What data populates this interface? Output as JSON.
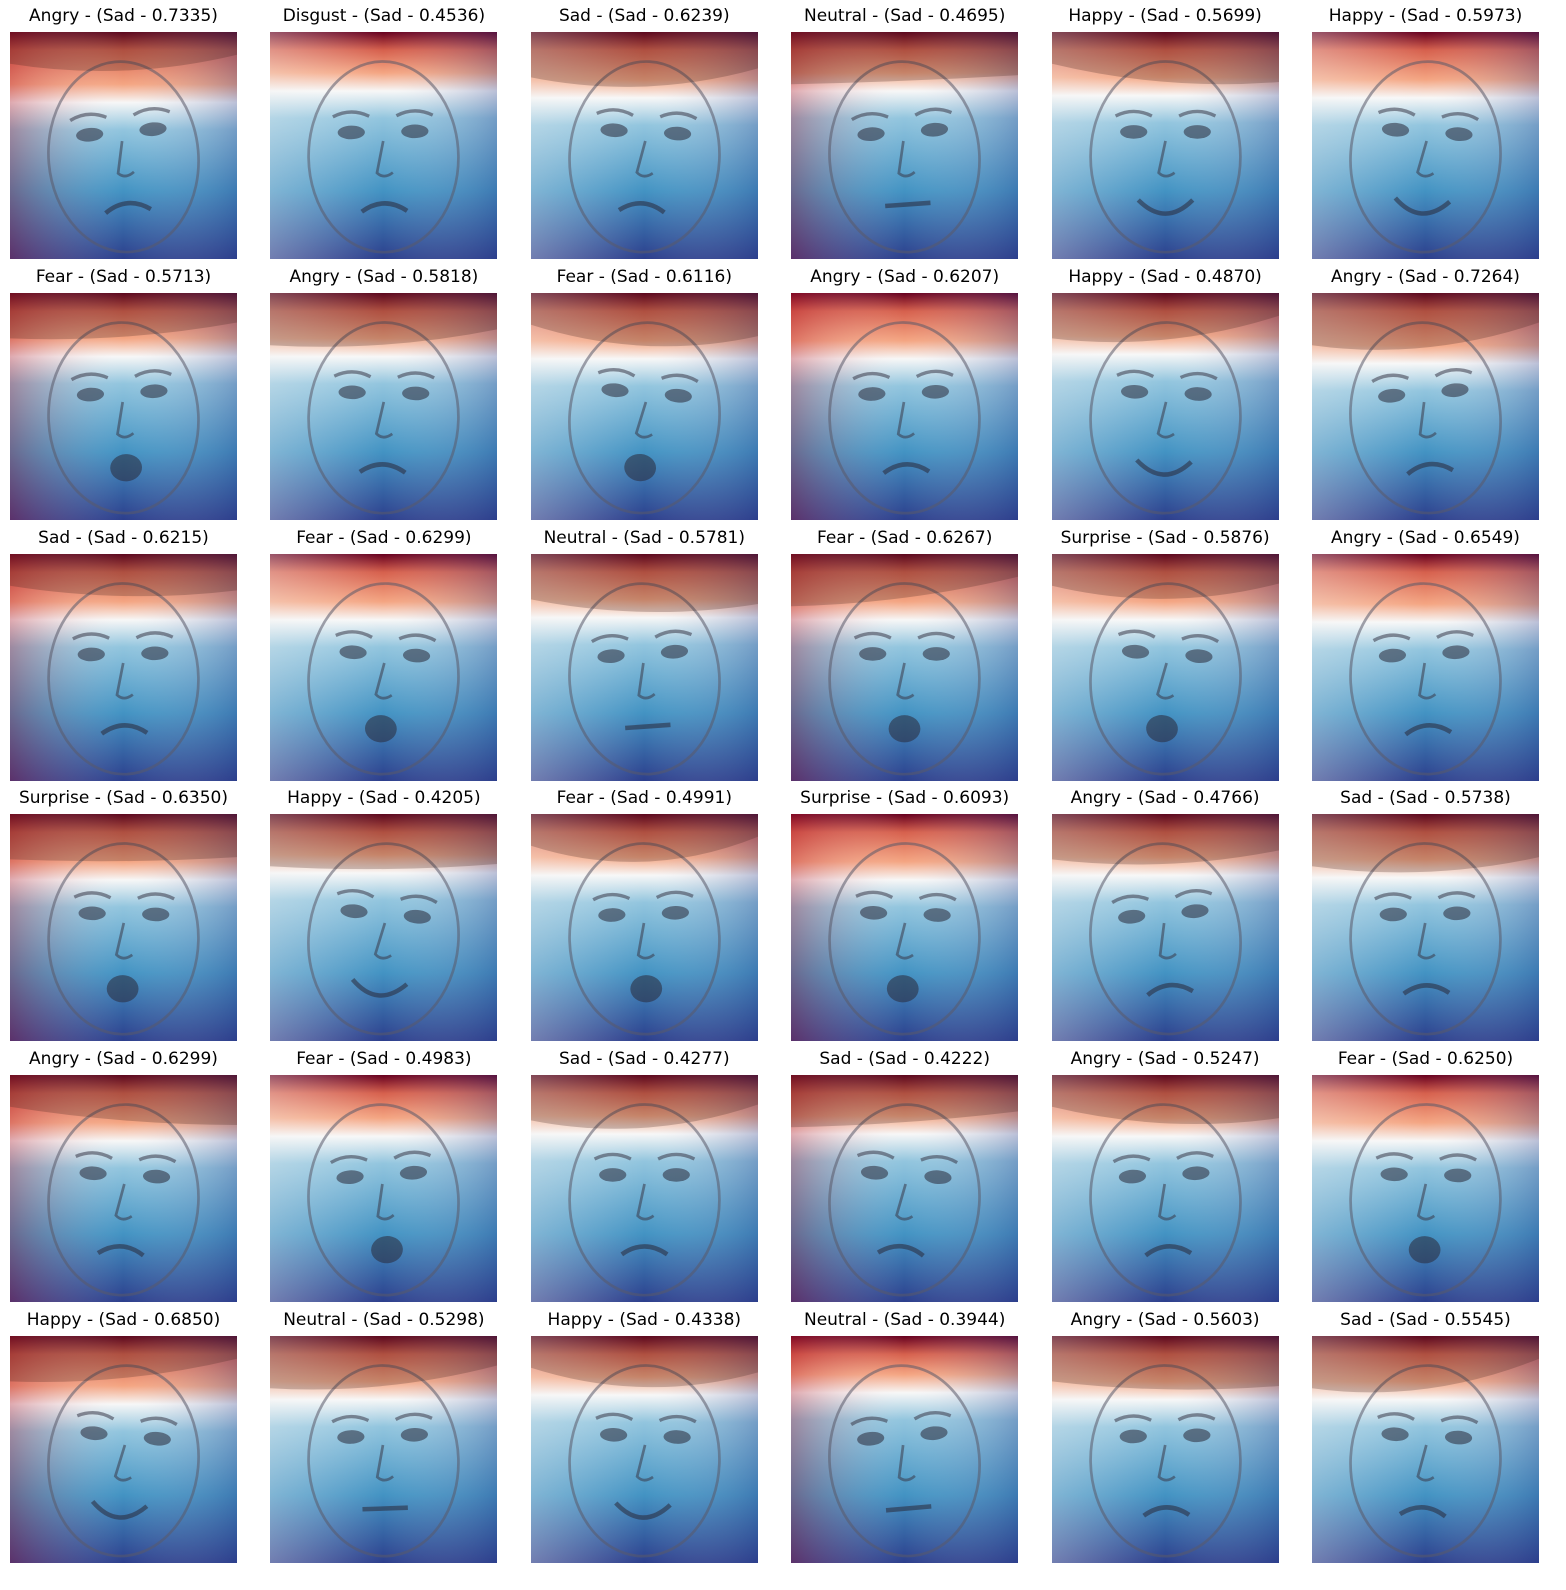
{
  "predicted_label": "Sad",
  "colormap": [
    "#67001f",
    "#d6604d",
    "#f4a582",
    "#f7f7f7",
    "#92c5de",
    "#4393c3",
    "#2c3e8c"
  ],
  "panels": [
    {
      "title": "Angry - (Sad - 0.7335)",
      "true_label": "Angry",
      "score": 0.7335
    },
    {
      "title": "Disgust - (Sad - 0.4536)",
      "true_label": "Disgust",
      "score": 0.4536
    },
    {
      "title": "Sad - (Sad - 0.6239)",
      "true_label": "Sad",
      "score": 0.6239
    },
    {
      "title": "Neutral - (Sad - 0.4695)",
      "true_label": "Neutral",
      "score": 0.4695
    },
    {
      "title": "Happy - (Sad - 0.5699)",
      "true_label": "Happy",
      "score": 0.5699
    },
    {
      "title": "Happy - (Sad - 0.5973)",
      "true_label": "Happy",
      "score": 0.5973
    },
    {
      "title": "Fear - (Sad - 0.5713)",
      "true_label": "Fear",
      "score": 0.5713
    },
    {
      "title": "Angry - (Sad - 0.5818)",
      "true_label": "Angry",
      "score": 0.5818
    },
    {
      "title": "Fear - (Sad - 0.6116)",
      "true_label": "Fear",
      "score": 0.6116
    },
    {
      "title": "Angry - (Sad - 0.6207)",
      "true_label": "Angry",
      "score": 0.6207
    },
    {
      "title": "Happy - (Sad - 0.4870)",
      "true_label": "Happy",
      "score": 0.487
    },
    {
      "title": "Angry - (Sad - 0.7264)",
      "true_label": "Angry",
      "score": 0.7264
    },
    {
      "title": "Sad - (Sad - 0.6215)",
      "true_label": "Sad",
      "score": 0.6215
    },
    {
      "title": "Fear - (Sad - 0.6299)",
      "true_label": "Fear",
      "score": 0.6299
    },
    {
      "title": "Neutral - (Sad - 0.5781)",
      "true_label": "Neutral",
      "score": 0.5781
    },
    {
      "title": "Fear - (Sad - 0.6267)",
      "true_label": "Fear",
      "score": 0.6267
    },
    {
      "title": "Surprise - (Sad - 0.5876)",
      "true_label": "Surprise",
      "score": 0.5876
    },
    {
      "title": "Angry - (Sad - 0.6549)",
      "true_label": "Angry",
      "score": 0.6549
    },
    {
      "title": "Surprise - (Sad - 0.6350)",
      "true_label": "Surprise",
      "score": 0.635
    },
    {
      "title": "Happy - (Sad - 0.4205)",
      "true_label": "Happy",
      "score": 0.4205
    },
    {
      "title": "Fear - (Sad - 0.4991)",
      "true_label": "Fear",
      "score": 0.4991
    },
    {
      "title": "Surprise - (Sad - 0.6093)",
      "true_label": "Surprise",
      "score": 0.6093
    },
    {
      "title": "Angry - (Sad - 0.4766)",
      "true_label": "Angry",
      "score": 0.4766
    },
    {
      "title": "Sad - (Sad - 0.5738)",
      "true_label": "Sad",
      "score": 0.5738
    },
    {
      "title": "Angry - (Sad - 0.6299)",
      "true_label": "Angry",
      "score": 0.6299
    },
    {
      "title": "Fear - (Sad - 0.4983)",
      "true_label": "Fear",
      "score": 0.4983
    },
    {
      "title": "Sad - (Sad - 0.4277)",
      "true_label": "Sad",
      "score": 0.4277
    },
    {
      "title": "Sad - (Sad - 0.4222)",
      "true_label": "Sad",
      "score": 0.4222
    },
    {
      "title": "Angry - (Sad - 0.5247)",
      "true_label": "Angry",
      "score": 0.5247
    },
    {
      "title": "Fear - (Sad - 0.6250)",
      "true_label": "Fear",
      "score": 0.625
    },
    {
      "title": "Happy - (Sad - 0.6850)",
      "true_label": "Happy",
      "score": 0.685
    },
    {
      "title": "Neutral - (Sad - 0.5298)",
      "true_label": "Neutral",
      "score": 0.5298
    },
    {
      "title": "Happy - (Sad - 0.4338)",
      "true_label": "Happy",
      "score": 0.4338
    },
    {
      "title": "Neutral - (Sad - 0.3944)",
      "true_label": "Neutral",
      "score": 0.3944
    },
    {
      "title": "Angry - (Sad - 0.5603)",
      "true_label": "Angry",
      "score": 0.5603
    },
    {
      "title": "Sad - (Sad - 0.5545)",
      "true_label": "Sad",
      "score": 0.5545
    }
  ]
}
